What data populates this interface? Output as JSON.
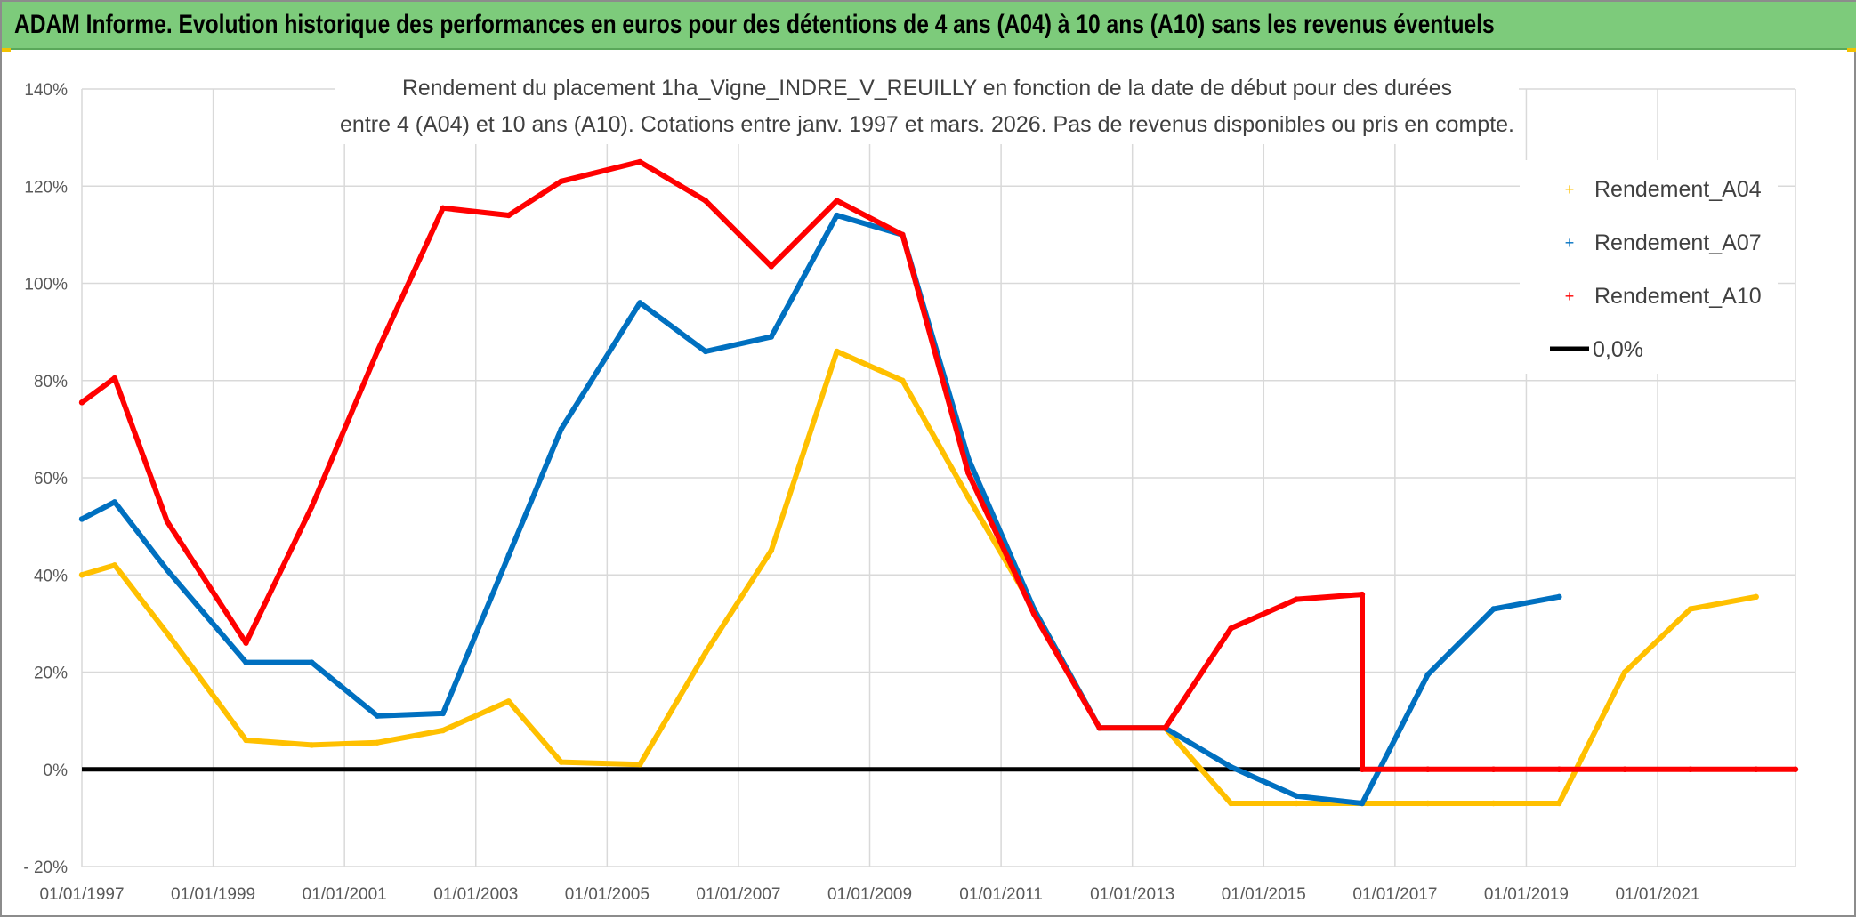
{
  "banner": {
    "title": "ADAM Informe. Evolution historique des performances en euros pour des détentions de 4 ans (A04) à 10 ans (A10) sans les revenus éventuels"
  },
  "colors": {
    "banner": "#7dcb7b",
    "A04": "#ffc000",
    "A07": "#0070c0",
    "A10": "#ff0000",
    "zero": "#000000"
  },
  "chart_data": {
    "type": "line",
    "title_line1": "Rendement du placement 1ha_Vigne_INDRE_V_REUILLY en fonction de la date de début pour des durées",
    "title_line2": "entre 4 (A04) et 10 ans (A10). Cotations entre janv. 1997 et mars. 2026. Pas de revenus disponibles ou pris en compte.",
    "xlabel": "",
    "ylabel": "",
    "xlim": [
      1997.0,
      2023.1
    ],
    "ylim": [
      -20,
      140
    ],
    "y_ticks": [
      {
        "value": 140,
        "label": "140%"
      },
      {
        "value": 120,
        "label": "120%"
      },
      {
        "value": 100,
        "label": "100%"
      },
      {
        "value": 80,
        "label": "80%"
      },
      {
        "value": 60,
        "label": "60%"
      },
      {
        "value": 40,
        "label": "40%"
      },
      {
        "value": 20,
        "label": "20%"
      },
      {
        "value": 0,
        "label": "0%"
      },
      {
        "value": -20,
        "label": "- 20%"
      }
    ],
    "x_ticks": [
      {
        "value": 1997,
        "label": "01/01/1997"
      },
      {
        "value": 1999,
        "label": "01/01/1999"
      },
      {
        "value": 2001,
        "label": "01/01/2001"
      },
      {
        "value": 2003,
        "label": "01/01/2003"
      },
      {
        "value": 2005,
        "label": "01/01/2005"
      },
      {
        "value": 2007,
        "label": "01/01/2007"
      },
      {
        "value": 2009,
        "label": "01/01/2009"
      },
      {
        "value": 2011,
        "label": "01/01/2011"
      },
      {
        "value": 2013,
        "label": "01/01/2013"
      },
      {
        "value": 2015,
        "label": "01/01/2015"
      },
      {
        "value": 2017,
        "label": "01/01/2017"
      },
      {
        "value": 2019,
        "label": "01/01/2019"
      },
      {
        "value": 2021,
        "label": "01/01/2021"
      }
    ],
    "grid": true,
    "legend_position": "top-right",
    "series": [
      {
        "name": "Rendement_A04",
        "x": [
          1997.0,
          1997.5,
          1998.3,
          1999.5,
          2000.5,
          2001.5,
          2002.5,
          2003.5,
          2004.3,
          2005.5,
          2006.5,
          2007.5,
          2008.5,
          2009.5,
          2010.5,
          2011.5,
          2012.5,
          2013.5,
          2014.5,
          2015.5,
          2016.5,
          2017.5,
          2018.5,
          2019.5,
          2020.5,
          2021.5,
          2022.5
        ],
        "y": [
          40,
          42,
          28,
          6,
          5,
          5.5,
          8,
          14,
          1.5,
          1,
          24,
          45,
          86,
          80,
          56,
          33,
          8.5,
          8.5,
          -7,
          -7,
          -7,
          -7,
          -7,
          -7,
          20,
          33,
          35.5
        ]
      },
      {
        "name": "Rendement_A07",
        "x": [
          1997.0,
          1997.5,
          1998.3,
          1999.5,
          2000.5,
          2001.5,
          2002.5,
          2003.5,
          2004.3,
          2005.5,
          2006.5,
          2007.5,
          2008.5,
          2009.5,
          2010.5,
          2011.5,
          2012.5,
          2013.5,
          2014.5,
          2015.5,
          2016.5,
          2017.5,
          2018.5,
          2019.5
        ],
        "y": [
          51.5,
          55,
          41,
          22,
          22,
          11,
          11.5,
          44,
          70,
          96,
          86,
          89,
          114,
          110,
          64,
          33,
          8.5,
          8.5,
          0.5,
          -5.5,
          -7,
          19.5,
          33,
          35.5
        ]
      },
      {
        "name": "Rendement_A10",
        "x": [
          1997.0,
          1997.5,
          1998.3,
          1999.5,
          2000.5,
          2001.5,
          2002.5,
          2003.5,
          2004.3,
          2005.5,
          2006.5,
          2007.5,
          2008.5,
          2009.5,
          2010.5,
          2011.5,
          2012.5,
          2013.5,
          2014.5,
          2015.5,
          2016.5,
          2016.5,
          2017.5,
          2018.5,
          2019.5,
          2020.5,
          2021.5,
          2022.5,
          2023.1
        ],
        "y": [
          75.5,
          80.5,
          51,
          26,
          54,
          86,
          115.5,
          114,
          121,
          125,
          117,
          103.5,
          117,
          110,
          61,
          32,
          8.5,
          8.5,
          29,
          35,
          36,
          0,
          0,
          0,
          0,
          0,
          0,
          0,
          0
        ]
      }
    ],
    "reference_line": {
      "name": "0,0%",
      "value": 0
    }
  }
}
